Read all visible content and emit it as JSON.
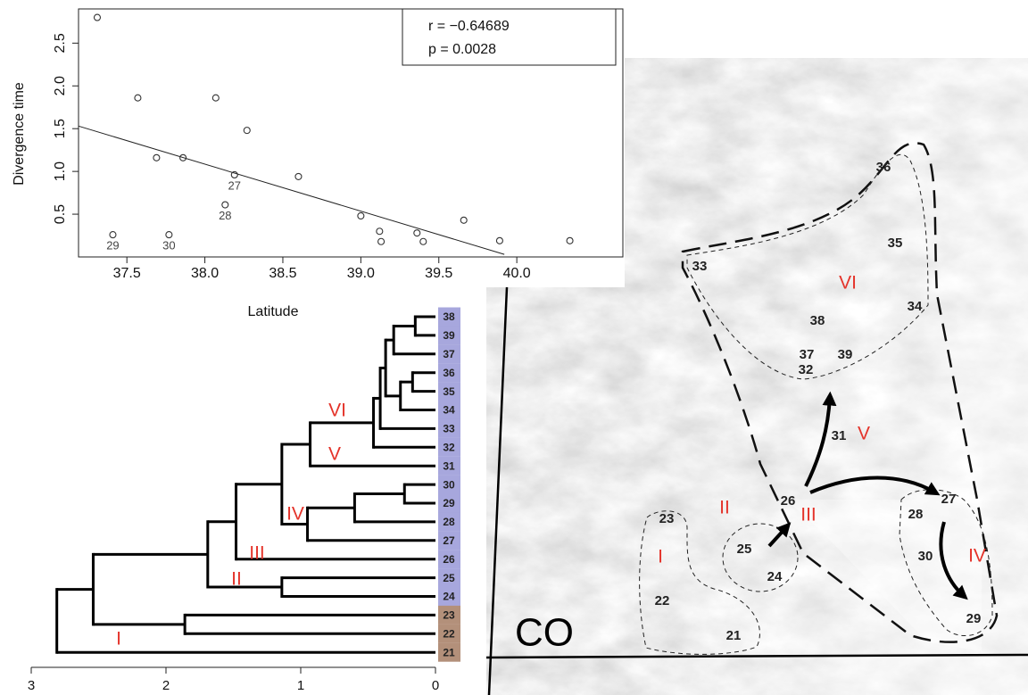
{
  "chart_data": {
    "type": "scatter",
    "x_label": "Latitude",
    "y_label": "Divergence time",
    "x": [
      37.31,
      37.41,
      37.57,
      37.69,
      37.86,
      37.77,
      38.07,
      38.27,
      38.19,
      38.13,
      38.6,
      39.0,
      39.12,
      39.13,
      39.36,
      39.4,
      39.66,
      39.89,
      40.34
    ],
    "values": [
      2.8,
      0.26,
      1.86,
      1.16,
      1.16,
      0.26,
      1.86,
      1.48,
      0.96,
      0.61,
      0.94,
      0.48,
      0.3,
      0.18,
      0.28,
      0.18,
      0.43,
      0.19,
      0.19
    ],
    "point_labels": [
      null,
      "29",
      null,
      null,
      null,
      "30",
      null,
      null,
      "27",
      "28",
      null,
      null,
      null,
      null,
      null,
      null,
      null,
      null,
      null
    ],
    "xlim": [
      37.19,
      40.68
    ],
    "ylim": [
      0,
      2.9
    ],
    "xticks": [
      37.5,
      {
        "value": 38,
        "label": "38.0"
      },
      38.5,
      {
        "value": 39,
        "label": "39.0"
      },
      39.5,
      {
        "value": 40,
        "label": "40.0"
      }
    ],
    "yticks": [
      0.5,
      {
        "value": 1,
        "label": "1.0"
      },
      1.5,
      {
        "value": 2,
        "label": "2.0"
      },
      2.5
    ],
    "fit": {
      "x": [
        37.19,
        39.92
      ],
      "values": [
        1.53,
        0.03
      ]
    },
    "annotations": [
      "r = −0.64689",
      "p = 0.0028"
    ]
  },
  "tree": {
    "xlim": [
      3,
      0
    ],
    "xticks": [
      3,
      2,
      1,
      0
    ],
    "root": {
      "height": 2.81,
      "children": [
        {
          "height": 2.54,
          "children": [
            {
              "height": 1.69,
              "children": [
                {
                  "height": 1.48,
                  "children": [
                    {
                      "height": 1.14,
                      "children": [
                        {
                          "height": 0.93,
                          "children": [
                            {
                              "height": 0.46,
                              "children": [
                                {
                                  "height": 0.41,
                                  "children": [
                                    {
                                      "height": 0.37,
                                      "children": [
                                        {
                                          "height": 0.31,
                                          "children": [
                                            {
                                              "height": 0.15,
                                              "children": [
                                                {
                                                  "label": "38",
                                                  "color": "#a7a7dd"
                                                },
                                                {
                                                  "label": "39",
                                                  "color": "#a7a7dd"
                                                }
                                              ]
                                            },
                                            {
                                              "label": "37",
                                              "color": "#a7a7dd"
                                            }
                                          ]
                                        },
                                        {
                                          "height": 0.26,
                                          "children": [
                                            {
                                              "height": 0.17,
                                              "children": [
                                                {
                                                  "label": "36",
                                                  "color": "#a7a7dd"
                                                },
                                                {
                                                  "label": "35",
                                                  "color": "#a7a7dd"
                                                }
                                              ]
                                            },
                                            {
                                              "label": "34",
                                              "color": "#a7a7dd"
                                            }
                                          ]
                                        }
                                      ]
                                    },
                                    {
                                      "label": "33",
                                      "color": "#a7a7dd"
                                    }
                                  ]
                                },
                                {
                                  "label": "32",
                                  "color": "#a7a7dd"
                                }
                              ]
                            },
                            {
                              "label": "31",
                              "color": "#a7a7dd"
                            }
                          ]
                        },
                        {
                          "height": 0.95,
                          "children": [
                            {
                              "height": 0.6,
                              "children": [
                                {
                                  "height": 0.23,
                                  "children": [
                                    {
                                      "label": "30",
                                      "color": "#a7a7dd"
                                    },
                                    {
                                      "label": "29",
                                      "color": "#a7a7dd"
                                    }
                                  ]
                                },
                                {
                                  "label": "28",
                                  "color": "#a7a7dd"
                                }
                              ]
                            },
                            {
                              "label": "27",
                              "color": "#a7a7dd"
                            }
                          ]
                        }
                      ]
                    },
                    {
                      "label": "26",
                      "color": "#a7a7dd"
                    }
                  ]
                },
                {
                  "height": 1.14,
                  "children": [
                    {
                      "label": "25",
                      "color": "#a7a7dd"
                    },
                    {
                      "label": "24",
                      "color": "#a7a7dd"
                    }
                  ]
                }
              ]
            },
            {
              "height": 1.86,
              "children": [
                {
                  "label": "23",
                  "color": "#b3907a"
                },
                {
                  "label": "22",
                  "color": "#b3907a"
                }
              ]
            }
          ]
        },
        {
          "label": "21",
          "color": "#b3907a"
        }
      ]
    },
    "clade_labels": [
      "VI",
      "V",
      "IV",
      "III",
      "II",
      "I"
    ]
  },
  "map": {
    "state": "CO",
    "site_labels": [
      "36",
      "35",
      "33",
      "34",
      "38",
      "37",
      "39",
      "32",
      "31",
      "26",
      "27",
      "28",
      "23",
      "25",
      "24",
      "30",
      "22",
      "29",
      "21"
    ],
    "region_labels": [
      "VI",
      "V",
      "III",
      "II",
      "I",
      "IV"
    ]
  }
}
